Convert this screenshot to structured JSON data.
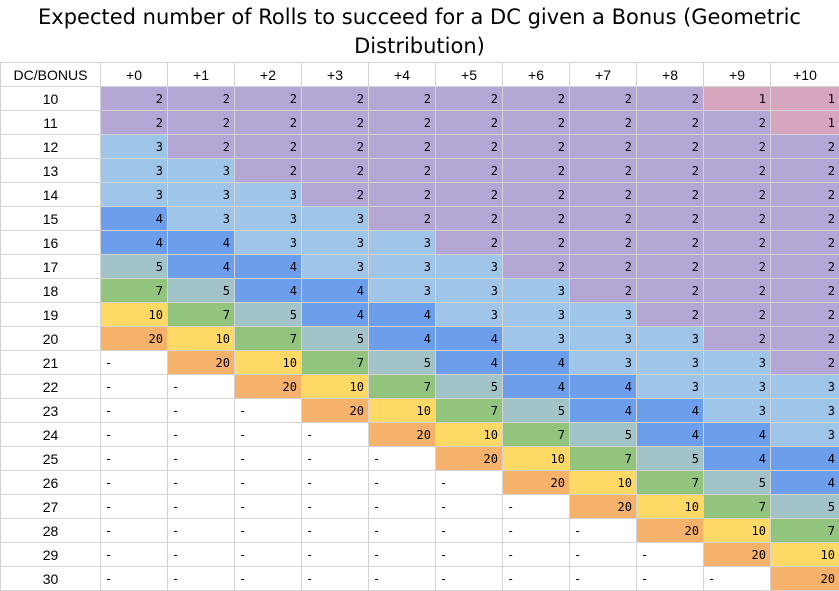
{
  "chart_data": {
    "type": "table",
    "title": "Expected number of Rolls to succeed for a DC given a Bonus (Geometric Distribution)",
    "corner_label": "DC/BONUS",
    "columns": [
      "+0",
      "+1",
      "+2",
      "+3",
      "+4",
      "+5",
      "+6",
      "+7",
      "+8",
      "+9",
      "+10"
    ],
    "rows": [
      {
        "dc": "10",
        "values": [
          "2",
          "2",
          "2",
          "2",
          "2",
          "2",
          "2",
          "2",
          "2",
          "1",
          "1"
        ]
      },
      {
        "dc": "11",
        "values": [
          "2",
          "2",
          "2",
          "2",
          "2",
          "2",
          "2",
          "2",
          "2",
          "2",
          "1"
        ]
      },
      {
        "dc": "12",
        "values": [
          "3",
          "2",
          "2",
          "2",
          "2",
          "2",
          "2",
          "2",
          "2",
          "2",
          "2"
        ]
      },
      {
        "dc": "13",
        "values": [
          "3",
          "3",
          "2",
          "2",
          "2",
          "2",
          "2",
          "2",
          "2",
          "2",
          "2"
        ]
      },
      {
        "dc": "14",
        "values": [
          "3",
          "3",
          "3",
          "2",
          "2",
          "2",
          "2",
          "2",
          "2",
          "2",
          "2"
        ]
      },
      {
        "dc": "15",
        "values": [
          "4",
          "3",
          "3",
          "3",
          "2",
          "2",
          "2",
          "2",
          "2",
          "2",
          "2"
        ]
      },
      {
        "dc": "16",
        "values": [
          "4",
          "4",
          "3",
          "3",
          "3",
          "2",
          "2",
          "2",
          "2",
          "2",
          "2"
        ]
      },
      {
        "dc": "17",
        "values": [
          "5",
          "4",
          "4",
          "3",
          "3",
          "3",
          "2",
          "2",
          "2",
          "2",
          "2"
        ]
      },
      {
        "dc": "18",
        "values": [
          "7",
          "5",
          "4",
          "4",
          "3",
          "3",
          "3",
          "2",
          "2",
          "2",
          "2"
        ]
      },
      {
        "dc": "19",
        "values": [
          "10",
          "7",
          "5",
          "4",
          "4",
          "3",
          "3",
          "3",
          "2",
          "2",
          "2"
        ]
      },
      {
        "dc": "20",
        "values": [
          "20",
          "10",
          "7",
          "5",
          "4",
          "4",
          "3",
          "3",
          "3",
          "2",
          "2"
        ]
      },
      {
        "dc": "21",
        "values": [
          "-",
          "20",
          "10",
          "7",
          "5",
          "4",
          "4",
          "3",
          "3",
          "3",
          "2"
        ]
      },
      {
        "dc": "22",
        "values": [
          "-",
          "-",
          "20",
          "10",
          "7",
          "5",
          "4",
          "4",
          "3",
          "3",
          "3"
        ]
      },
      {
        "dc": "23",
        "values": [
          "-",
          "-",
          "-",
          "20",
          "10",
          "7",
          "5",
          "4",
          "4",
          "3",
          "3"
        ]
      },
      {
        "dc": "24",
        "values": [
          "-",
          "-",
          "-",
          "-",
          "20",
          "10",
          "7",
          "5",
          "4",
          "4",
          "3"
        ]
      },
      {
        "dc": "25",
        "values": [
          "-",
          "-",
          "-",
          "-",
          "-",
          "20",
          "10",
          "7",
          "5",
          "4",
          "4"
        ]
      },
      {
        "dc": "26",
        "values": [
          "-",
          "-",
          "-",
          "-",
          "-",
          "-",
          "20",
          "10",
          "7",
          "5",
          "4"
        ]
      },
      {
        "dc": "27",
        "values": [
          "-",
          "-",
          "-",
          "-",
          "-",
          "-",
          "-",
          "20",
          "10",
          "7",
          "5"
        ]
      },
      {
        "dc": "28",
        "values": [
          "-",
          "-",
          "-",
          "-",
          "-",
          "-",
          "-",
          "-",
          "20",
          "10",
          "7"
        ]
      },
      {
        "dc": "29",
        "values": [
          "-",
          "-",
          "-",
          "-",
          "-",
          "-",
          "-",
          "-",
          "-",
          "20",
          "10"
        ]
      },
      {
        "dc": "30",
        "values": [
          "-",
          "-",
          "-",
          "-",
          "-",
          "-",
          "-",
          "-",
          "-",
          "-",
          "20"
        ]
      }
    ],
    "value_colors": {
      "1": "#d5a6bd",
      "2": "#b4a7d6",
      "3": "#9fc5e8",
      "4": "#6d9eeb",
      "5": "#a2c4c9",
      "7": "#93c47d",
      "10": "#ffd966",
      "20": "#f6b26b",
      "-": "#ffffff"
    }
  }
}
